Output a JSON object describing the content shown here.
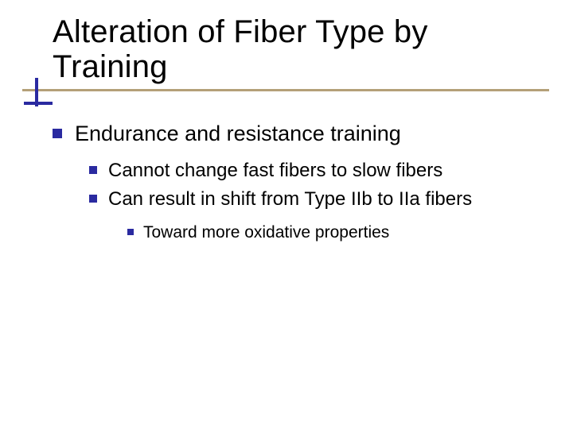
{
  "colors": {
    "accent": "#2a2aa0",
    "underline": "#b4a078",
    "text": "#000000",
    "background": "#ffffff"
  },
  "title": "Alteration of Fiber Type by Training",
  "body": {
    "lvl1": "Endurance and resistance training",
    "lvl2": [
      "Cannot change fast fibers to slow fibers",
      "Can result in shift from Type IIb to IIa fibers"
    ],
    "lvl3": "Toward more oxidative properties"
  }
}
